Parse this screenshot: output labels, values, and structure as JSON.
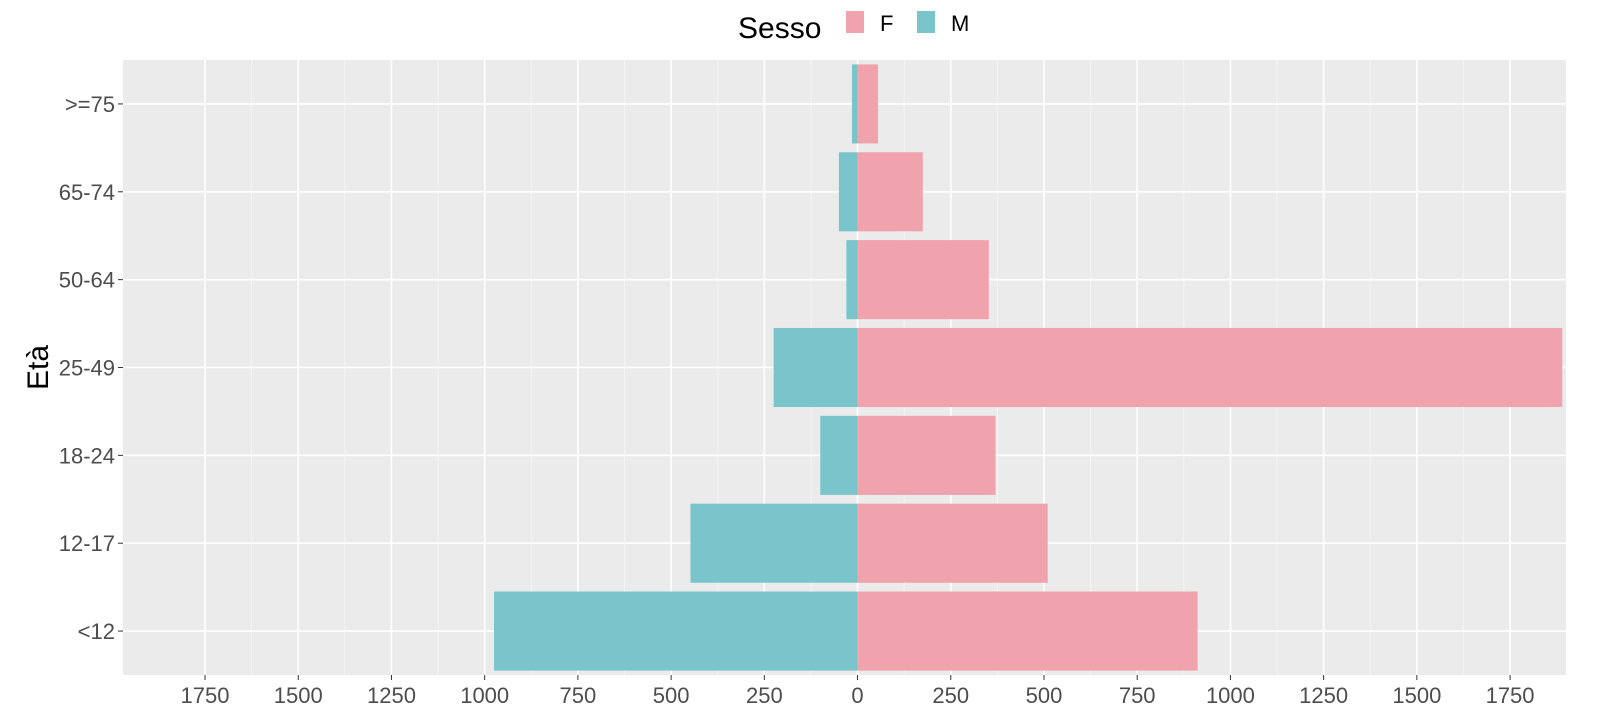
{
  "chart_data": {
    "type": "bar",
    "orientation": "horizontal-population-pyramid",
    "title": "",
    "xlabel": "",
    "ylabel": "Età",
    "categories": [
      ">=75",
      "65-74",
      "50-64",
      "25-49",
      "18-24",
      "12-17",
      "<12"
    ],
    "series": [
      {
        "name": "F",
        "color": "#f0a3ad",
        "values": [
          55,
          175,
          352,
          1890,
          370,
          510,
          912
        ]
      },
      {
        "name": "M",
        "color": "#7ac5cc",
        "values": [
          15,
          50,
          30,
          225,
          100,
          448,
          975
        ]
      }
    ],
    "xlim": [
      -1970,
      1900
    ],
    "xticks": [
      -1750,
      -1500,
      -1250,
      -1000,
      -750,
      -500,
      -250,
      0,
      250,
      500,
      750,
      1000,
      1250,
      1500,
      1750
    ],
    "xtick_labels": [
      "1750",
      "1500",
      "1250",
      "1000",
      "750",
      "500",
      "250",
      "0",
      "250",
      "500",
      "750",
      "1000",
      "1250",
      "1500",
      "1750"
    ],
    "grid": true,
    "panel_background": "#ebebeb",
    "legend": {
      "title": "Sesso",
      "position": "top",
      "entries": [
        "F",
        "M"
      ]
    }
  }
}
